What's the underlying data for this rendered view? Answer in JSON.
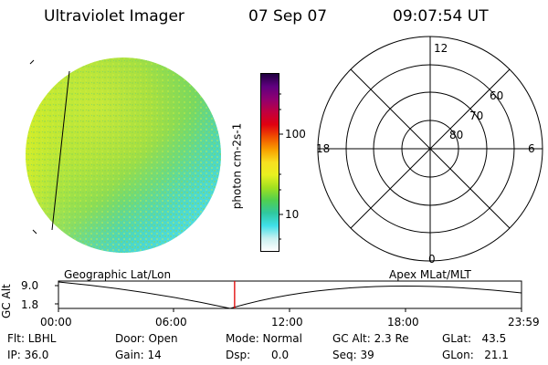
{
  "header": {
    "title": "Ultraviolet Imager",
    "date": "07 Sep 07",
    "time": "09:07:54 UT"
  },
  "colorbar": {
    "label": "photon cm-2s-1",
    "ticks": [
      "100",
      "10"
    ],
    "colors": [
      "#ffffff",
      "#c8f0f0",
      "#40e0e8",
      "#30c8a0",
      "#50d050",
      "#a0e020",
      "#e8f020",
      "#f8e020",
      "#f8a000",
      "#f05000",
      "#e00010",
      "#c00040",
      "#900070",
      "#600080",
      "#200040"
    ]
  },
  "polar": {
    "mlt_labels": {
      "top": "12",
      "left": "18",
      "right": "6",
      "bottom": "0"
    },
    "lat_labels": [
      "60",
      "70",
      "80"
    ]
  },
  "timeline": {
    "ylabel": "GC Alt",
    "yticks": [
      "9.0",
      "1.8"
    ],
    "left_label": "Geographic Lat/Lon",
    "right_label": "Apex MLat/MLT",
    "xticks": [
      "00:00",
      "06:00",
      "12:00",
      "18:00",
      "23:59"
    ],
    "current_hour": 9.13
  },
  "info": {
    "flt": "Flt: LBHL",
    "ip": "IP: 36.0",
    "door": "Door: Open",
    "gain": "Gain: 14",
    "mode": "Mode: Normal",
    "dsp": "Dsp:      0.0",
    "gcalt": "GC Alt: 2.3 Re",
    "seq": "Seq: 39",
    "glat": "GLat:   43.5",
    "glon": "GLon:   21.1"
  }
}
